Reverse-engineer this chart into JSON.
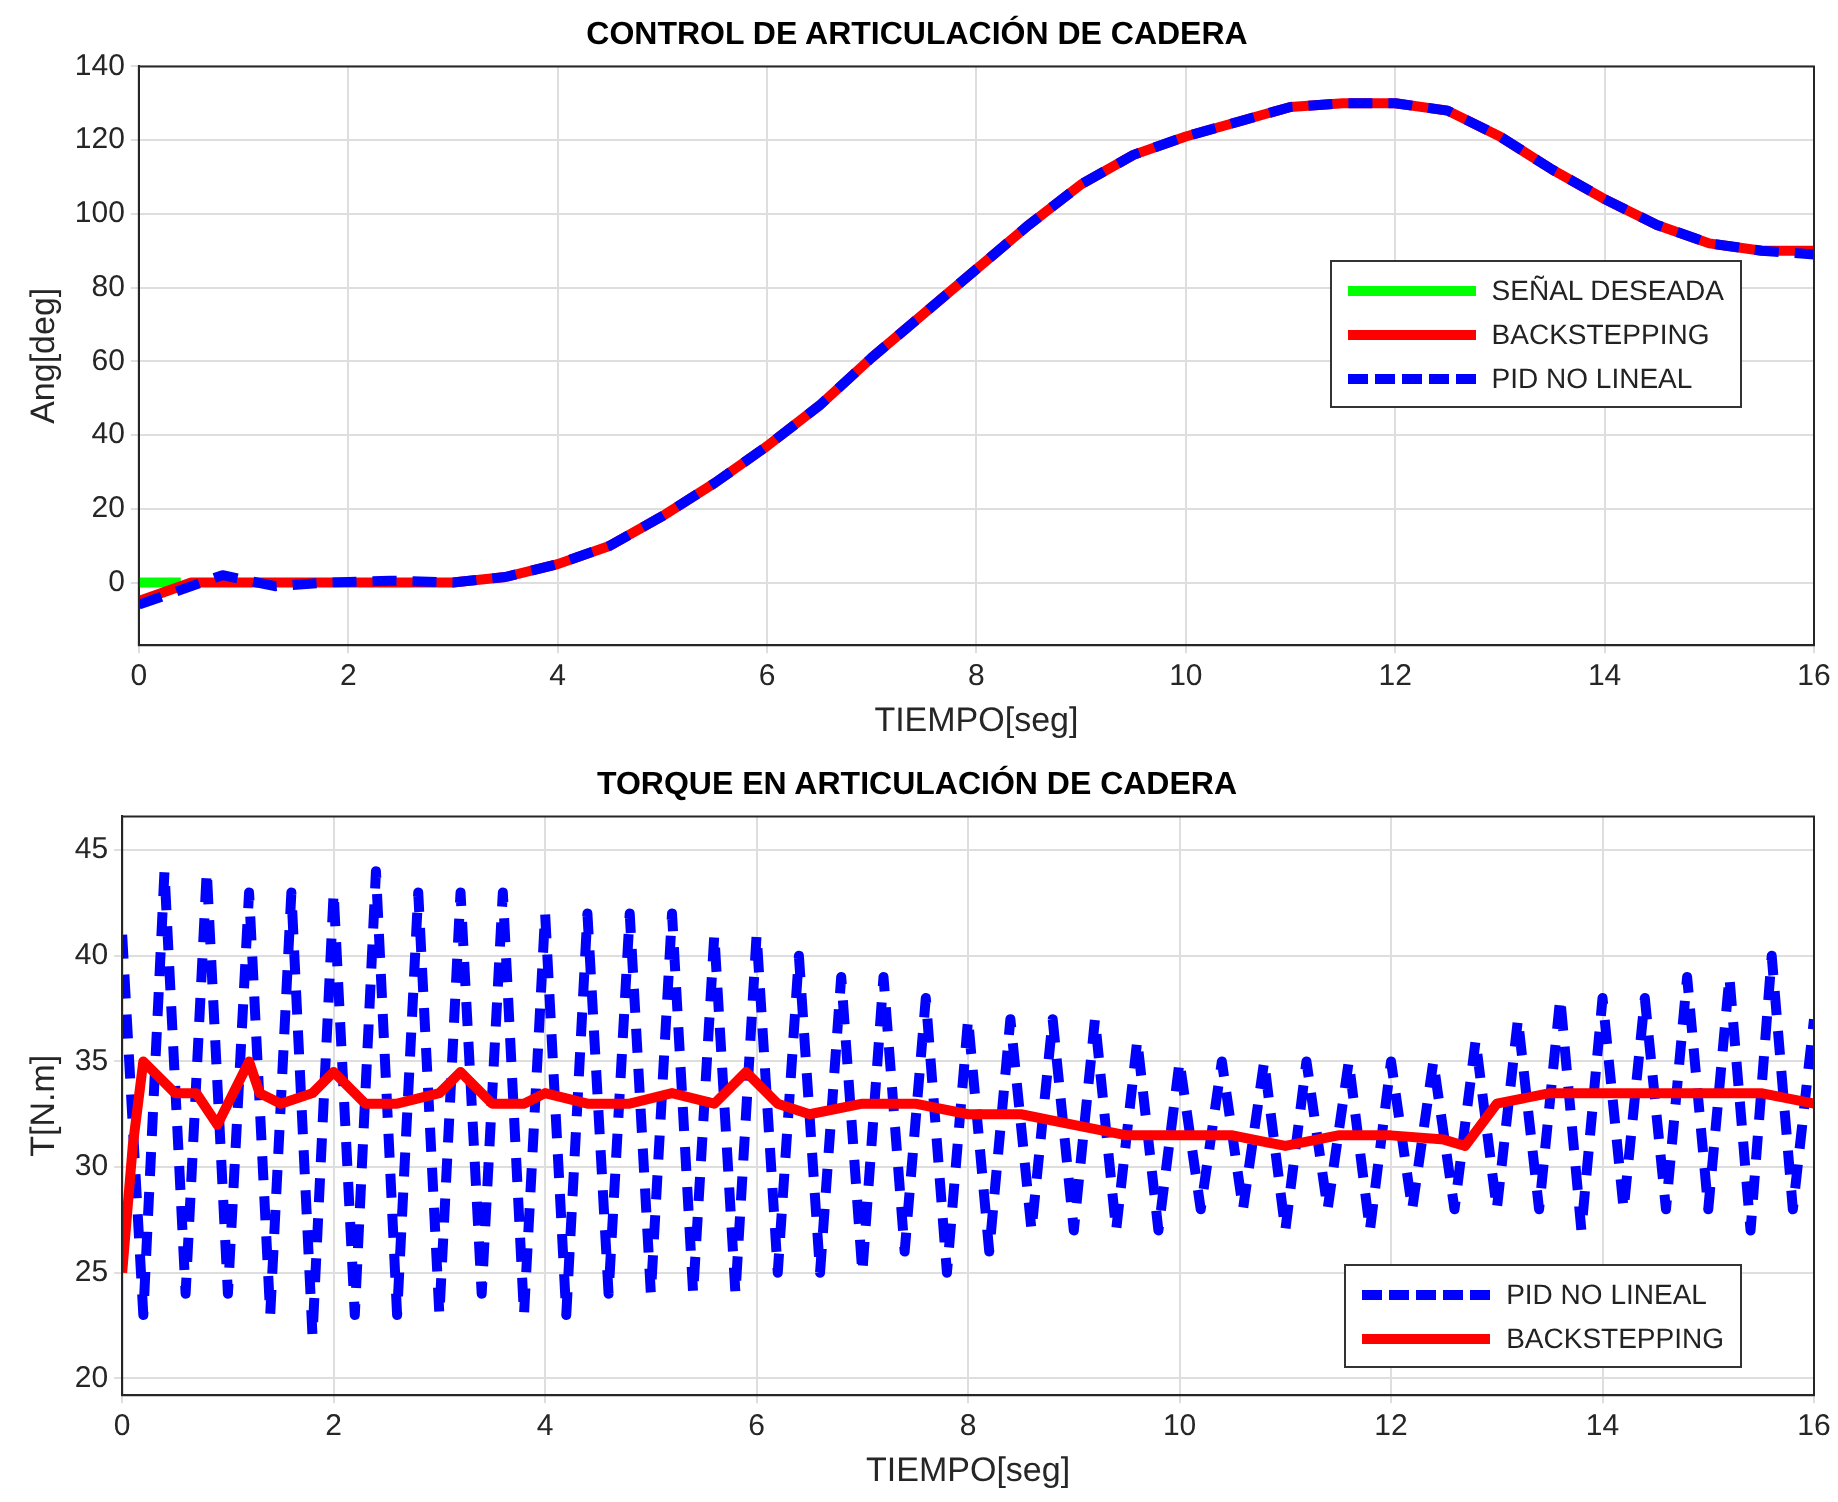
{
  "chart_data": [
    {
      "type": "line",
      "title": "CONTROL DE ARTICULACIÓN DE CADERA",
      "xlabel": "TIEMPO[seg]",
      "ylabel": "Ang[deg]",
      "xlim": [
        0,
        16
      ],
      "xticks": [
        0,
        2,
        4,
        6,
        8,
        10,
        12,
        14,
        16
      ],
      "ylim": [
        -17,
        140
      ],
      "yticks": [
        0,
        20,
        40,
        60,
        80,
        100,
        120,
        140
      ],
      "grid": true,
      "legend": "right",
      "series": [
        {
          "name": "SEÑAL DESEADA",
          "color": "#00ff00",
          "x": [
            0,
            0.4
          ],
          "values": [
            0,
            0
          ]
        },
        {
          "name": "BACKSTEPPING",
          "color": "#ff0000",
          "x": [
            0,
            0.5,
            1,
            2,
            3,
            3.5,
            4,
            4.5,
            5,
            5.5,
            6,
            6.5,
            7,
            7.5,
            8,
            8.5,
            9,
            9.5,
            10,
            10.5,
            11,
            11.5,
            12,
            12.5,
            13,
            13.5,
            14,
            14.5,
            15,
            15.5,
            16
          ],
          "values": [
            -5,
            0,
            0,
            0,
            0,
            1.5,
            5,
            10,
            18,
            27,
            37,
            48,
            61,
            73,
            85,
            97,
            108,
            116,
            121,
            125,
            129,
            130,
            130,
            128,
            121,
            112,
            104,
            97,
            92,
            90,
            90
          ]
        },
        {
          "name": "PID NO LINEAL",
          "color": "#0000ff",
          "line_style": "dashed",
          "x": [
            0,
            0.3,
            0.8,
            1.3,
            1.8,
            2.4,
            3,
            3.5,
            4,
            4.5,
            5,
            5.5,
            6,
            6.5,
            7,
            7.5,
            8,
            8.5,
            9,
            9.5,
            10,
            10.5,
            11,
            11.5,
            12,
            12.5,
            13,
            13.5,
            14,
            14.5,
            15,
            15.5,
            16
          ],
          "values": [
            -6,
            -3,
            2,
            -1,
            0,
            0.5,
            0,
            1.5,
            5,
            10,
            18,
            27,
            37,
            48,
            61,
            73,
            85,
            97,
            108,
            116,
            121,
            125,
            129,
            130,
            130,
            128,
            121,
            112,
            104,
            97,
            92,
            90,
            89
          ]
        }
      ]
    },
    {
      "type": "line",
      "title": "TORQUE EN ARTICULACIÓN DE CADERA",
      "xlabel": "TIEMPO[seg]",
      "ylabel": "T[N.m]",
      "xlim": [
        0,
        16
      ],
      "xticks": [
        0,
        2,
        4,
        6,
        8,
        10,
        12,
        14,
        16
      ],
      "ylim": [
        19.2,
        46.6
      ],
      "yticks": [
        20,
        25,
        30,
        35,
        40,
        45
      ],
      "grid": true,
      "legend": "bottom right",
      "series": [
        {
          "name": "PID NO LINEAL",
          "color": "#0000ff",
          "line_style": "dashed",
          "x": [
            0,
            0.2,
            0.4,
            0.6,
            0.8,
            1,
            1.2,
            1.4,
            1.6,
            1.8,
            2,
            2.2,
            2.4,
            2.6,
            2.8,
            3,
            3.2,
            3.4,
            3.6,
            3.8,
            4,
            4.2,
            4.4,
            4.6,
            4.8,
            5,
            5.2,
            5.4,
            5.6,
            5.8,
            6,
            6.2,
            6.4,
            6.6,
            6.8,
            7,
            7.2,
            7.4,
            7.6,
            7.8,
            8,
            8.2,
            8.4,
            8.6,
            8.8,
            9,
            9.2,
            9.4,
            9.6,
            9.8,
            10,
            10.2,
            10.4,
            10.6,
            10.8,
            11,
            11.2,
            11.4,
            11.6,
            11.8,
            12,
            12.2,
            12.4,
            12.6,
            12.8,
            13,
            13.2,
            13.4,
            13.6,
            13.8,
            14,
            14.2,
            14.4,
            14.6,
            14.8,
            15,
            15.2,
            15.4,
            15.6,
            15.8,
            16
          ],
          "values": [
            41,
            23,
            44,
            24,
            44,
            24,
            43,
            23,
            43,
            22,
            43,
            23,
            44,
            23,
            43,
            23,
            43,
            24,
            43,
            23,
            42,
            23,
            42,
            24,
            42,
            24,
            42,
            24,
            41,
            24,
            41,
            25,
            40,
            25,
            39,
            25,
            39,
            26,
            38,
            25,
            37,
            26,
            37,
            27,
            37,
            27,
            37,
            27,
            36,
            27,
            35,
            28,
            35,
            28,
            35,
            27,
            35,
            28,
            35,
            27,
            35,
            28,
            35,
            28,
            36,
            28,
            37,
            28,
            38,
            27,
            38,
            28,
            38,
            28,
            39,
            28,
            39,
            27,
            40,
            28,
            37
          ]
        },
        {
          "name": "BACKSTEPPING",
          "color": "#ff0000",
          "x": [
            0,
            0.1,
            0.2,
            0.3,
            0.5,
            0.7,
            0.9,
            1.0,
            1.2,
            1.3,
            1.5,
            1.8,
            2.0,
            2.3,
            2.6,
            3.0,
            3.2,
            3.5,
            3.8,
            4.0,
            4.4,
            4.8,
            5.2,
            5.6,
            5.9,
            6.2,
            6.5,
            7.0,
            7.5,
            8.0,
            8.5,
            9.0,
            9.5,
            10.0,
            10.5,
            11.0,
            11.5,
            12.0,
            12.5,
            12.7,
            13.0,
            13.5,
            14.0,
            14.5,
            15.0,
            15.5,
            16.0
          ],
          "values": [
            25,
            31,
            35,
            34.5,
            33.5,
            33.5,
            32,
            33,
            35,
            33.5,
            33,
            33.5,
            34.5,
            33,
            33,
            33.5,
            34.5,
            33,
            33,
            33.5,
            33,
            33,
            33.5,
            33,
            34.5,
            33,
            32.5,
            33,
            33,
            32.5,
            32.5,
            32,
            31.5,
            31.5,
            31.5,
            31,
            31.5,
            31.5,
            31.3,
            31,
            33,
            33.5,
            33.5,
            33.5,
            33.5,
            33.5,
            33
          ]
        }
      ]
    }
  ]
}
